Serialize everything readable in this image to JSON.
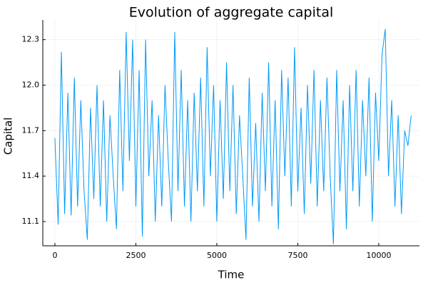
{
  "chart_data": {
    "type": "line",
    "title": "Evolution of aggregate capital",
    "x_label": "Time",
    "y_label": "Capital",
    "x": [
      0,
      100,
      200,
      300,
      400,
      500,
      600,
      700,
      800,
      900,
      1000,
      1100,
      1200,
      1300,
      1400,
      1500,
      1600,
      1700,
      1800,
      1900,
      2000,
      2100,
      2200,
      2300,
      2400,
      2500,
      2600,
      2700,
      2800,
      2900,
      3000,
      3100,
      3200,
      3300,
      3400,
      3500,
      3600,
      3700,
      3800,
      3900,
      4000,
      4100,
      4200,
      4300,
      4400,
      4500,
      4600,
      4700,
      4800,
      4900,
      5000,
      5100,
      5200,
      5300,
      5400,
      5500,
      5600,
      5700,
      5800,
      5900,
      6000,
      6100,
      6200,
      6300,
      6400,
      6500,
      6600,
      6700,
      6800,
      6900,
      7000,
      7100,
      7200,
      7300,
      7400,
      7500,
      7600,
      7700,
      7800,
      7900,
      8000,
      8100,
      8200,
      8300,
      8400,
      8500,
      8600,
      8700,
      8800,
      8900,
      9000,
      9100,
      9200,
      9300,
      9400,
      9500,
      9600,
      9700,
      9800,
      9900,
      10000,
      10100,
      10200,
      10300,
      10400,
      10500,
      10600,
      10700,
      10800,
      10900,
      11000
    ],
    "series": [
      {
        "color": "#009af9",
        "values": [
          11.65,
          11.08,
          12.22,
          11.15,
          11.95,
          11.14,
          12.05,
          11.2,
          11.9,
          11.3,
          10.98,
          11.85,
          11.25,
          12.0,
          11.2,
          11.9,
          11.1,
          11.8,
          11.4,
          11.05,
          12.1,
          11.3,
          12.35,
          11.5,
          12.3,
          11.2,
          12.1,
          11.0,
          12.3,
          11.4,
          11.9,
          11.1,
          11.8,
          11.2,
          12.0,
          11.5,
          11.1,
          12.35,
          11.3,
          12.1,
          11.2,
          11.9,
          11.1,
          11.95,
          11.3,
          12.05,
          11.2,
          12.25,
          11.4,
          12.0,
          11.1,
          11.9,
          11.25,
          12.15,
          11.3,
          12.0,
          11.15,
          11.8,
          11.4,
          10.98,
          12.05,
          11.2,
          11.75,
          11.1,
          11.95,
          11.3,
          12.15,
          11.2,
          11.9,
          11.05,
          12.1,
          11.4,
          12.05,
          11.2,
          12.25,
          11.3,
          11.85,
          11.15,
          12.0,
          11.35,
          12.1,
          11.2,
          11.9,
          11.3,
          12.05,
          11.4,
          10.95,
          12.1,
          11.3,
          11.9,
          11.05,
          12.0,
          11.3,
          12.1,
          11.2,
          11.9,
          11.4,
          12.05,
          11.1,
          11.95,
          11.5,
          12.2,
          12.37,
          11.4,
          11.9,
          11.2,
          11.8,
          11.15,
          11.7,
          11.6,
          11.8
        ]
      }
    ],
    "xlim": [
      -374,
      11256
    ],
    "ylim": [
      10.94,
      12.43
    ],
    "xticks": [
      0,
      2500,
      5000,
      7500,
      10000
    ],
    "yticks": [
      11.1,
      11.4,
      11.7,
      {
        "value": 12,
        "label": "12.0"
      },
      12.3
    ],
    "grid": true
  }
}
